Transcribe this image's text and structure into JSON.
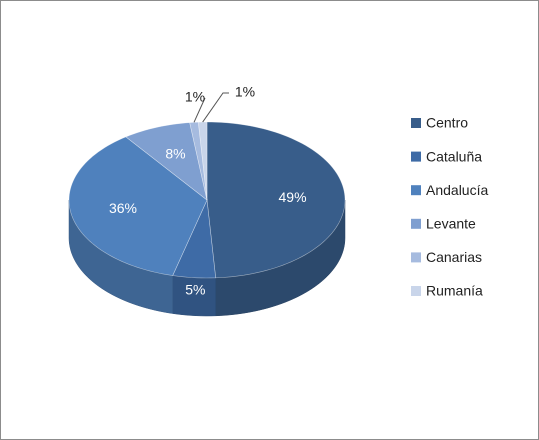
{
  "chart_data": {
    "type": "pie3d",
    "categories": [
      "Centro",
      "Cataluña",
      "Andalucía",
      "Levante",
      "Canarias",
      "Rumanía"
    ],
    "values": [
      49,
      5,
      36,
      8,
      1,
      1
    ],
    "value_labels": [
      "49%",
      "5%",
      "36%",
      "8%",
      "1%",
      "1%"
    ],
    "colors": [
      "#385d8a",
      "#3e6ba6",
      "#4f81bd",
      "#7f9fd0",
      "#a6bbdf",
      "#c9d5ea"
    ],
    "legend": "right"
  }
}
